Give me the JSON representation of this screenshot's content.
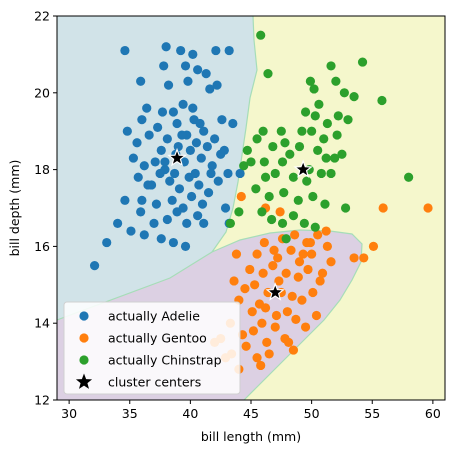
{
  "chart_data": {
    "type": "scatter",
    "xlabel": "bill length (mm)",
    "ylabel": "bill depth (mm)",
    "xlim": [
      29,
      61
    ],
    "ylim": [
      12,
      22
    ],
    "xticks": [
      30,
      35,
      40,
      45,
      50,
      55,
      60
    ],
    "yticks": [
      12,
      14,
      16,
      18,
      20,
      22
    ],
    "grid": false,
    "legend_position": "lower-left",
    "background_regions": [
      {
        "label_for": "Adelie cluster region",
        "color": "#d1e3e8"
      },
      {
        "label_for": "Chinstrap cluster region",
        "color": "#f5f7cc"
      },
      {
        "label_for": "Gentoo cluster region",
        "color": "#dcd0e3"
      }
    ],
    "series": [
      {
        "name": "actually Adelie",
        "color": "#1f77b4",
        "marker": "circle",
        "points": [
          [
            34.6,
            21.1
          ],
          [
            38.0,
            21.2
          ],
          [
            39.2,
            21.1
          ],
          [
            40.2,
            21.0
          ],
          [
            42.1,
            21.1
          ],
          [
            43.2,
            21.1
          ],
          [
            37.8,
            20.7
          ],
          [
            39.6,
            20.7
          ],
          [
            40.6,
            20.6
          ],
          [
            41.3,
            20.5
          ],
          [
            35.9,
            20.3
          ],
          [
            38.2,
            20.2
          ],
          [
            39.8,
            20.3
          ],
          [
            41.6,
            20.1
          ],
          [
            42.2,
            20.2
          ],
          [
            36.4,
            19.6
          ],
          [
            37.7,
            19.5
          ],
          [
            38.6,
            19.5
          ],
          [
            39.4,
            19.7
          ],
          [
            40.3,
            19.3
          ],
          [
            41.1,
            19.0
          ],
          [
            36.0,
            19.3
          ],
          [
            37.3,
            19.1
          ],
          [
            38.9,
            19.2
          ],
          [
            40.8,
            19.2
          ],
          [
            42.6,
            19.3
          ],
          [
            43.5,
            19.2
          ],
          [
            34.8,
            19.0
          ],
          [
            35.6,
            18.7
          ],
          [
            36.6,
            18.9
          ],
          [
            37.6,
            18.5
          ],
          [
            38.1,
            18.8
          ],
          [
            39.0,
            18.6
          ],
          [
            39.7,
            18.9
          ],
          [
            40.5,
            18.7
          ],
          [
            41.4,
            18.6
          ],
          [
            42.0,
            18.8
          ],
          [
            42.8,
            18.5
          ],
          [
            35.3,
            18.3
          ],
          [
            36.2,
            18.1
          ],
          [
            37.1,
            18.2
          ],
          [
            37.9,
            18.0
          ],
          [
            38.8,
            18.4
          ],
          [
            39.5,
            18.2
          ],
          [
            40.0,
            18.5
          ],
          [
            40.9,
            18.3
          ],
          [
            41.8,
            18.1
          ],
          [
            42.5,
            18.4
          ],
          [
            43.1,
            17.9
          ],
          [
            35.7,
            17.8
          ],
          [
            36.8,
            17.6
          ],
          [
            37.5,
            17.9
          ],
          [
            38.3,
            17.7
          ],
          [
            39.1,
            17.5
          ],
          [
            39.9,
            17.8
          ],
          [
            40.7,
            17.6
          ],
          [
            41.5,
            17.4
          ],
          [
            42.3,
            17.7
          ],
          [
            44.1,
            17.9
          ],
          [
            36.0,
            17.2
          ],
          [
            37.2,
            17.1
          ],
          [
            38.5,
            17.2
          ],
          [
            39.4,
            17.0
          ],
          [
            40.1,
            17.3
          ],
          [
            41.0,
            17.1
          ],
          [
            42.9,
            17.0
          ],
          [
            34.6,
            17.2
          ],
          [
            35.9,
            16.9
          ],
          [
            37.0,
            16.6
          ],
          [
            38.1,
            16.7
          ],
          [
            38.9,
            16.9
          ],
          [
            39.7,
            16.6
          ],
          [
            40.6,
            16.8
          ],
          [
            41.1,
            16.6
          ],
          [
            43.2,
            16.6
          ],
          [
            34.0,
            16.6
          ],
          [
            35.1,
            16.4
          ],
          [
            36.2,
            16.3
          ],
          [
            37.6,
            16.2
          ],
          [
            38.6,
            16.1
          ],
          [
            39.6,
            16.0
          ],
          [
            32.1,
            15.5
          ],
          [
            33.1,
            16.1
          ],
          [
            37.9,
            18.2
          ],
          [
            40.4,
            17.9
          ],
          [
            36.5,
            17.6
          ],
          [
            39.3,
            18.9
          ],
          [
            41.7,
            17.9
          ],
          [
            38.7,
            17.9
          ],
          [
            40.2,
            19.6
          ]
        ]
      },
      {
        "name": "actually Gentoo",
        "color": "#ff7f0e",
        "marker": "circle",
        "points": [
          [
            47.6,
            16.2
          ],
          [
            48.6,
            16.3
          ],
          [
            49.6,
            16.1
          ],
          [
            50.5,
            16.3
          ],
          [
            51.2,
            16.4
          ],
          [
            46.1,
            16.1
          ],
          [
            45.5,
            15.8
          ],
          [
            47.2,
            15.7
          ],
          [
            48.3,
            15.9
          ],
          [
            49.0,
            15.6
          ],
          [
            50.0,
            15.8
          ],
          [
            51.6,
            15.6
          ],
          [
            53.5,
            15.7
          ],
          [
            44.9,
            15.4
          ],
          [
            46.0,
            15.3
          ],
          [
            46.8,
            15.5
          ],
          [
            47.9,
            15.3
          ],
          [
            48.9,
            15.2
          ],
          [
            49.7,
            15.4
          ],
          [
            50.7,
            15.1
          ],
          [
            43.6,
            15.1
          ],
          [
            44.5,
            14.9
          ],
          [
            45.3,
            15.0
          ],
          [
            46.4,
            14.8
          ],
          [
            47.5,
            14.8
          ],
          [
            48.4,
            14.7
          ],
          [
            49.2,
            14.6
          ],
          [
            50.1,
            14.8
          ],
          [
            44.0,
            14.6
          ],
          [
            45.1,
            14.3
          ],
          [
            46.2,
            14.4
          ],
          [
            47.1,
            14.2
          ],
          [
            48.0,
            14.3
          ],
          [
            48.7,
            14.1
          ],
          [
            49.5,
            13.9
          ],
          [
            50.4,
            14.2
          ],
          [
            43.3,
            14.0
          ],
          [
            44.3,
            13.7
          ],
          [
            45.2,
            13.8
          ],
          [
            46.3,
            13.5
          ],
          [
            47.0,
            13.9
          ],
          [
            47.8,
            13.6
          ],
          [
            48.5,
            13.3
          ],
          [
            42.5,
            13.6
          ],
          [
            43.4,
            13.2
          ],
          [
            44.6,
            13.4
          ],
          [
            45.5,
            13.1
          ],
          [
            46.5,
            13.2
          ],
          [
            45.8,
            12.9
          ],
          [
            44.0,
            12.8
          ],
          [
            42.9,
            13.1
          ],
          [
            42.0,
            13.5
          ],
          [
            46.9,
            15.9
          ],
          [
            45.9,
            14.0
          ],
          [
            47.3,
            15.1
          ],
          [
            49.9,
            16.1
          ],
          [
            51.3,
            16.0
          ],
          [
            47.4,
            16.9
          ],
          [
            46.2,
            17.0
          ],
          [
            44.2,
            17.3
          ],
          [
            55.9,
            17.0
          ],
          [
            59.6,
            17.0
          ],
          [
            55.1,
            16.0
          ],
          [
            54.3,
            15.7
          ],
          [
            43.8,
            15.8
          ],
          [
            48.1,
            13.5
          ],
          [
            45.7,
            14.5
          ],
          [
            50.9,
            15.3
          ],
          [
            49.3,
            15.8
          ]
        ]
      },
      {
        "name": "actually Chinstrap",
        "color": "#2ca02c",
        "marker": "circle",
        "points": [
          [
            45.8,
            21.5
          ],
          [
            51.6,
            20.7
          ],
          [
            52.0,
            20.3
          ],
          [
            52.7,
            20.0
          ],
          [
            54.2,
            20.8
          ],
          [
            53.5,
            19.9
          ],
          [
            55.8,
            19.8
          ],
          [
            46.4,
            20.5
          ],
          [
            50.6,
            19.7
          ],
          [
            49.5,
            19.5
          ],
          [
            50.3,
            19.4
          ],
          [
            51.3,
            19.2
          ],
          [
            52.2,
            19.4
          ],
          [
            53.0,
            19.3
          ],
          [
            50.0,
            19.0
          ],
          [
            51.0,
            18.8
          ],
          [
            52.1,
            18.9
          ],
          [
            49.2,
            19.0
          ],
          [
            47.5,
            19.0
          ],
          [
            46.0,
            19.0
          ],
          [
            45.5,
            18.8
          ],
          [
            46.8,
            18.6
          ],
          [
            48.2,
            18.4
          ],
          [
            49.0,
            18.6
          ],
          [
            50.5,
            18.5
          ],
          [
            51.2,
            18.3
          ],
          [
            52.5,
            18.4
          ],
          [
            47.6,
            18.2
          ],
          [
            45.0,
            18.2
          ],
          [
            44.4,
            18.1
          ],
          [
            46.2,
            17.8
          ],
          [
            47.0,
            17.9
          ],
          [
            48.5,
            17.8
          ],
          [
            49.6,
            17.7
          ],
          [
            50.8,
            17.9
          ],
          [
            51.6,
            17.9
          ],
          [
            45.4,
            17.5
          ],
          [
            46.5,
            17.3
          ],
          [
            47.7,
            17.4
          ],
          [
            48.9,
            17.2
          ],
          [
            50.1,
            17.3
          ],
          [
            51.1,
            17.1
          ],
          [
            45.9,
            16.9
          ],
          [
            46.7,
            16.7
          ],
          [
            47.6,
            16.6
          ],
          [
            48.5,
            16.8
          ],
          [
            49.4,
            16.6
          ],
          [
            50.3,
            16.5
          ],
          [
            44.0,
            16.9
          ],
          [
            43.3,
            16.6
          ],
          [
            47.9,
            16.2
          ],
          [
            52.8,
            17.0
          ],
          [
            58.0,
            17.8
          ],
          [
            51.9,
            18.3
          ],
          [
            49.8,
            18.0
          ],
          [
            44.7,
            18.5
          ],
          [
            46.1,
            18.2
          ],
          [
            47.8,
            18.7
          ],
          [
            50.2,
            20.1
          ],
          [
            49.9,
            20.3
          ]
        ]
      },
      {
        "name": "cluster centers",
        "color": "#000000",
        "marker": "star",
        "points": [
          [
            38.9,
            18.3
          ],
          [
            47.0,
            14.8
          ],
          [
            49.3,
            18.0
          ]
        ]
      }
    ]
  }
}
